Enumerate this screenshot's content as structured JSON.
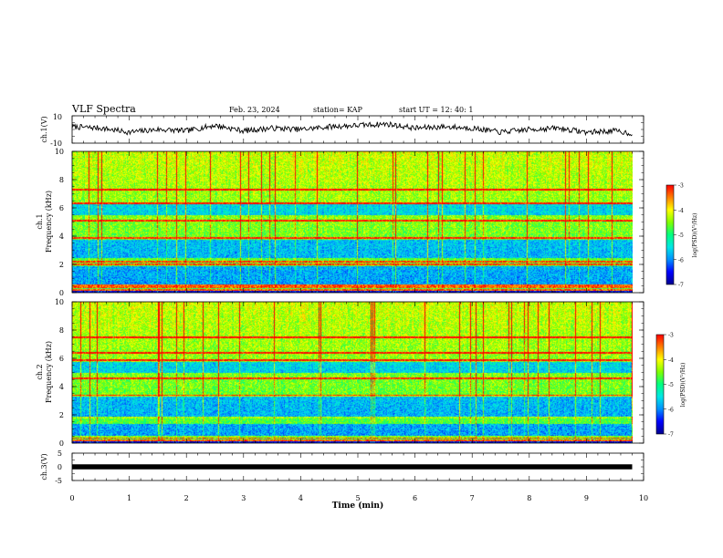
{
  "header": {
    "title": "VLF Spectra",
    "date": "Feb. 23, 2024",
    "station": "station= KAP",
    "start": "start  UT =   12: 40: 1"
  },
  "colors": {
    "spectrogram_stops": [
      "#000090",
      "#0000ff",
      "#0090ff",
      "#00e6e6",
      "#00ff80",
      "#80ff00",
      "#ffff00",
      "#ff8000",
      "#ff0000"
    ],
    "trace": "#000000"
  },
  "chart_data": [
    {
      "id": "ch1-waveform",
      "type": "line",
      "ylabel": "ch.1(V)",
      "ylim": [
        -10,
        10
      ],
      "yticks": [
        "10",
        "-10"
      ],
      "x": [
        0,
        0.5,
        1.0,
        1.5,
        2.0,
        2.5,
        3.0,
        3.5,
        4.0,
        4.5,
        5.0,
        5.5,
        6.0,
        6.5,
        7.0,
        7.5,
        8.0,
        8.5,
        9.0,
        9.5,
        9.8
      ],
      "values": [
        2,
        1,
        -2,
        0,
        -1,
        3,
        -1,
        1,
        0,
        2,
        3,
        4,
        1,
        2,
        1,
        -2,
        0,
        1,
        -2,
        -1,
        -3
      ]
    },
    {
      "id": "ch1-spectrogram",
      "type": "heatmap",
      "xlabel": "",
      "ylabel": "ch.1\nFrequency (kHz)",
      "ylabel_lines": [
        "ch.1",
        "Frequency (kHz)"
      ],
      "ylim": [
        0,
        10
      ],
      "yticks": [
        "0",
        "2",
        "4",
        "6",
        "8",
        "10"
      ],
      "colorbar_label": "log(PSD)(V²/Hz)",
      "colorbar_ticks": [
        "-3",
        "-4",
        "-5",
        "-6",
        "-7"
      ],
      "low_band_khz": [
        [
          5.5,
          6.3
        ],
        [
          2.5,
          3.8
        ],
        [
          0.6,
          1.9
        ]
      ],
      "lines_khz": [
        0.2,
        0.4,
        0.55,
        2.05,
        2.25,
        3.9,
        5.15,
        6.35,
        7.3
      ]
    },
    {
      "id": "ch2-spectrogram",
      "type": "heatmap",
      "xlabel": "",
      "ylabel": "ch.2\nFrequency (kHz)",
      "ylabel_lines": [
        "ch.2",
        "Frequency (kHz)"
      ],
      "ylim": [
        0,
        10
      ],
      "yticks": [
        "0",
        "2",
        "4",
        "6",
        "8",
        "10"
      ],
      "colorbar_label": "log(PSD)(V²/Hz)",
      "colorbar_ticks": [
        "-3",
        "-4",
        "-5",
        "-6",
        "-7"
      ],
      "low_band_khz": [
        [
          1.8,
          3.4
        ],
        [
          0.4,
          1.4
        ],
        [
          5.0,
          5.8
        ]
      ],
      "lines_khz": [
        0.2,
        0.45,
        1.85,
        3.4,
        4.6,
        5.9,
        6.4,
        7.5
      ]
    },
    {
      "id": "ch3-waveform",
      "type": "line",
      "ylabel": "ch.3(V)",
      "ylim": [
        -5,
        5
      ],
      "yticks": [
        "5",
        "0",
        "-5"
      ],
      "x": [
        0,
        9.8
      ],
      "values": [
        0,
        0
      ]
    }
  ],
  "xaxis": {
    "label": "Time (min)",
    "range": [
      0,
      10
    ],
    "ticks": [
      "0",
      "1",
      "2",
      "3",
      "4",
      "5",
      "6",
      "7",
      "8",
      "9",
      "10"
    ]
  }
}
